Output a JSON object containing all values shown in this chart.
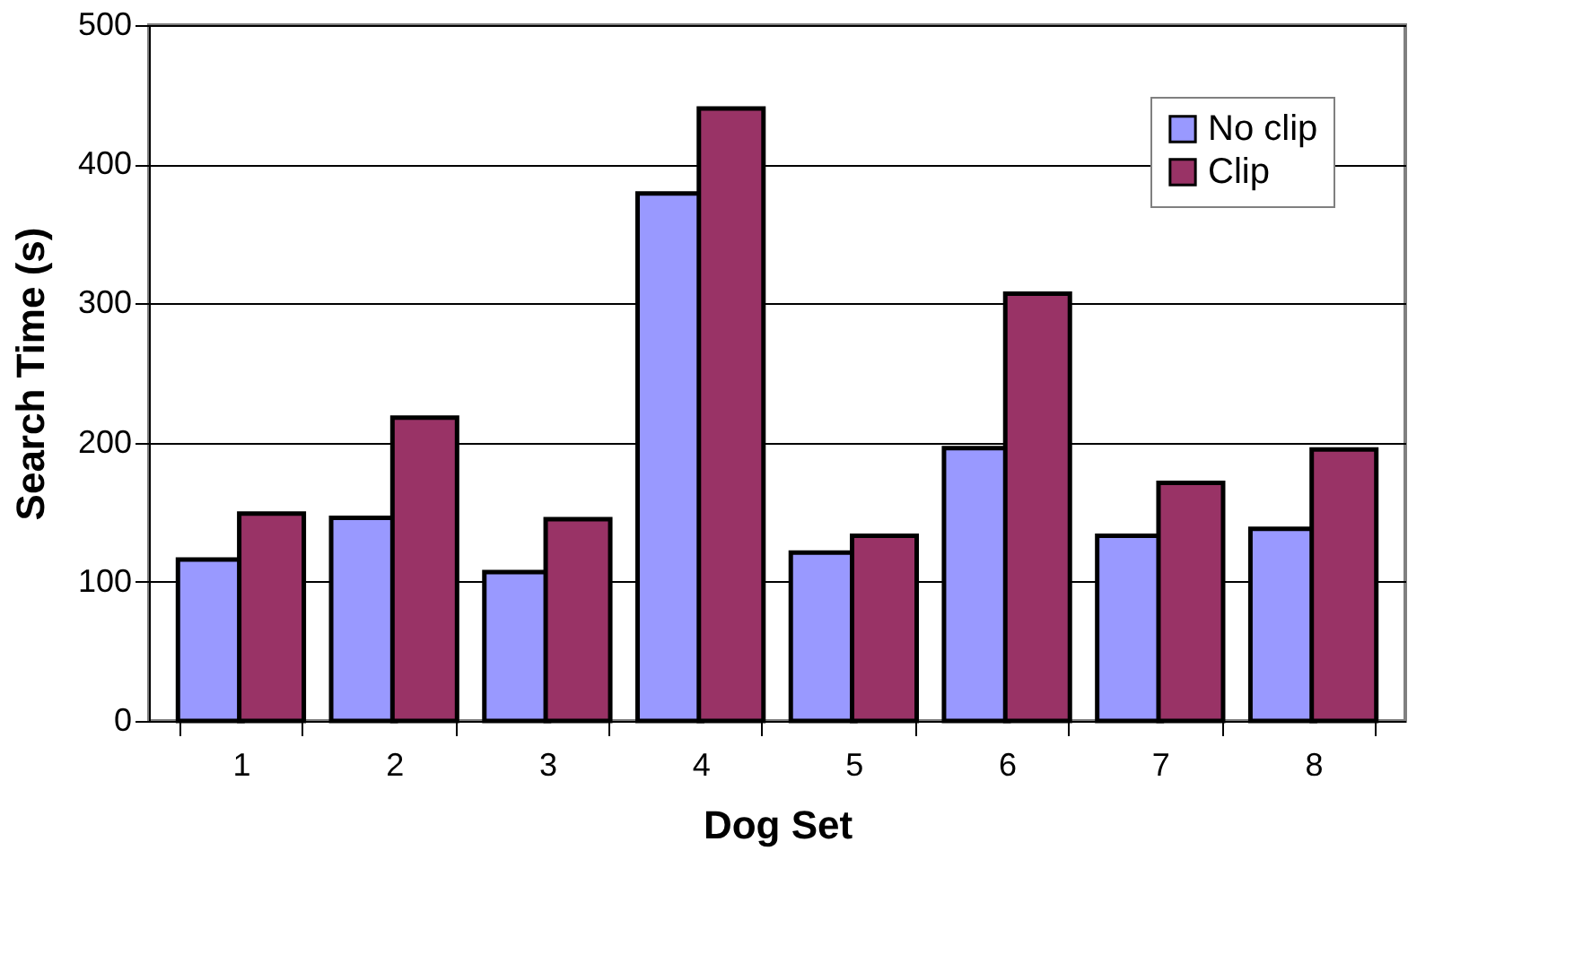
{
  "chart_data": {
    "type": "bar",
    "xlabel": "Dog Set",
    "ylabel": "Search Time (s)",
    "categories": [
      "1",
      "2",
      "3",
      "4",
      "5",
      "6",
      "7",
      "8"
    ],
    "series": [
      {
        "name": "No clip",
        "color": "#9999ff",
        "values": [
          116,
          146,
          107,
          379,
          121,
          196,
          133,
          138
        ]
      },
      {
        "name": "Clip",
        "color": "#993366",
        "values": [
          149,
          218,
          145,
          440,
          133,
          307,
          171,
          195
        ]
      }
    ],
    "ylim": [
      0,
      500
    ],
    "yticks": [
      0,
      100,
      200,
      300,
      400,
      500
    ],
    "grid": "y",
    "legend": "top right"
  }
}
